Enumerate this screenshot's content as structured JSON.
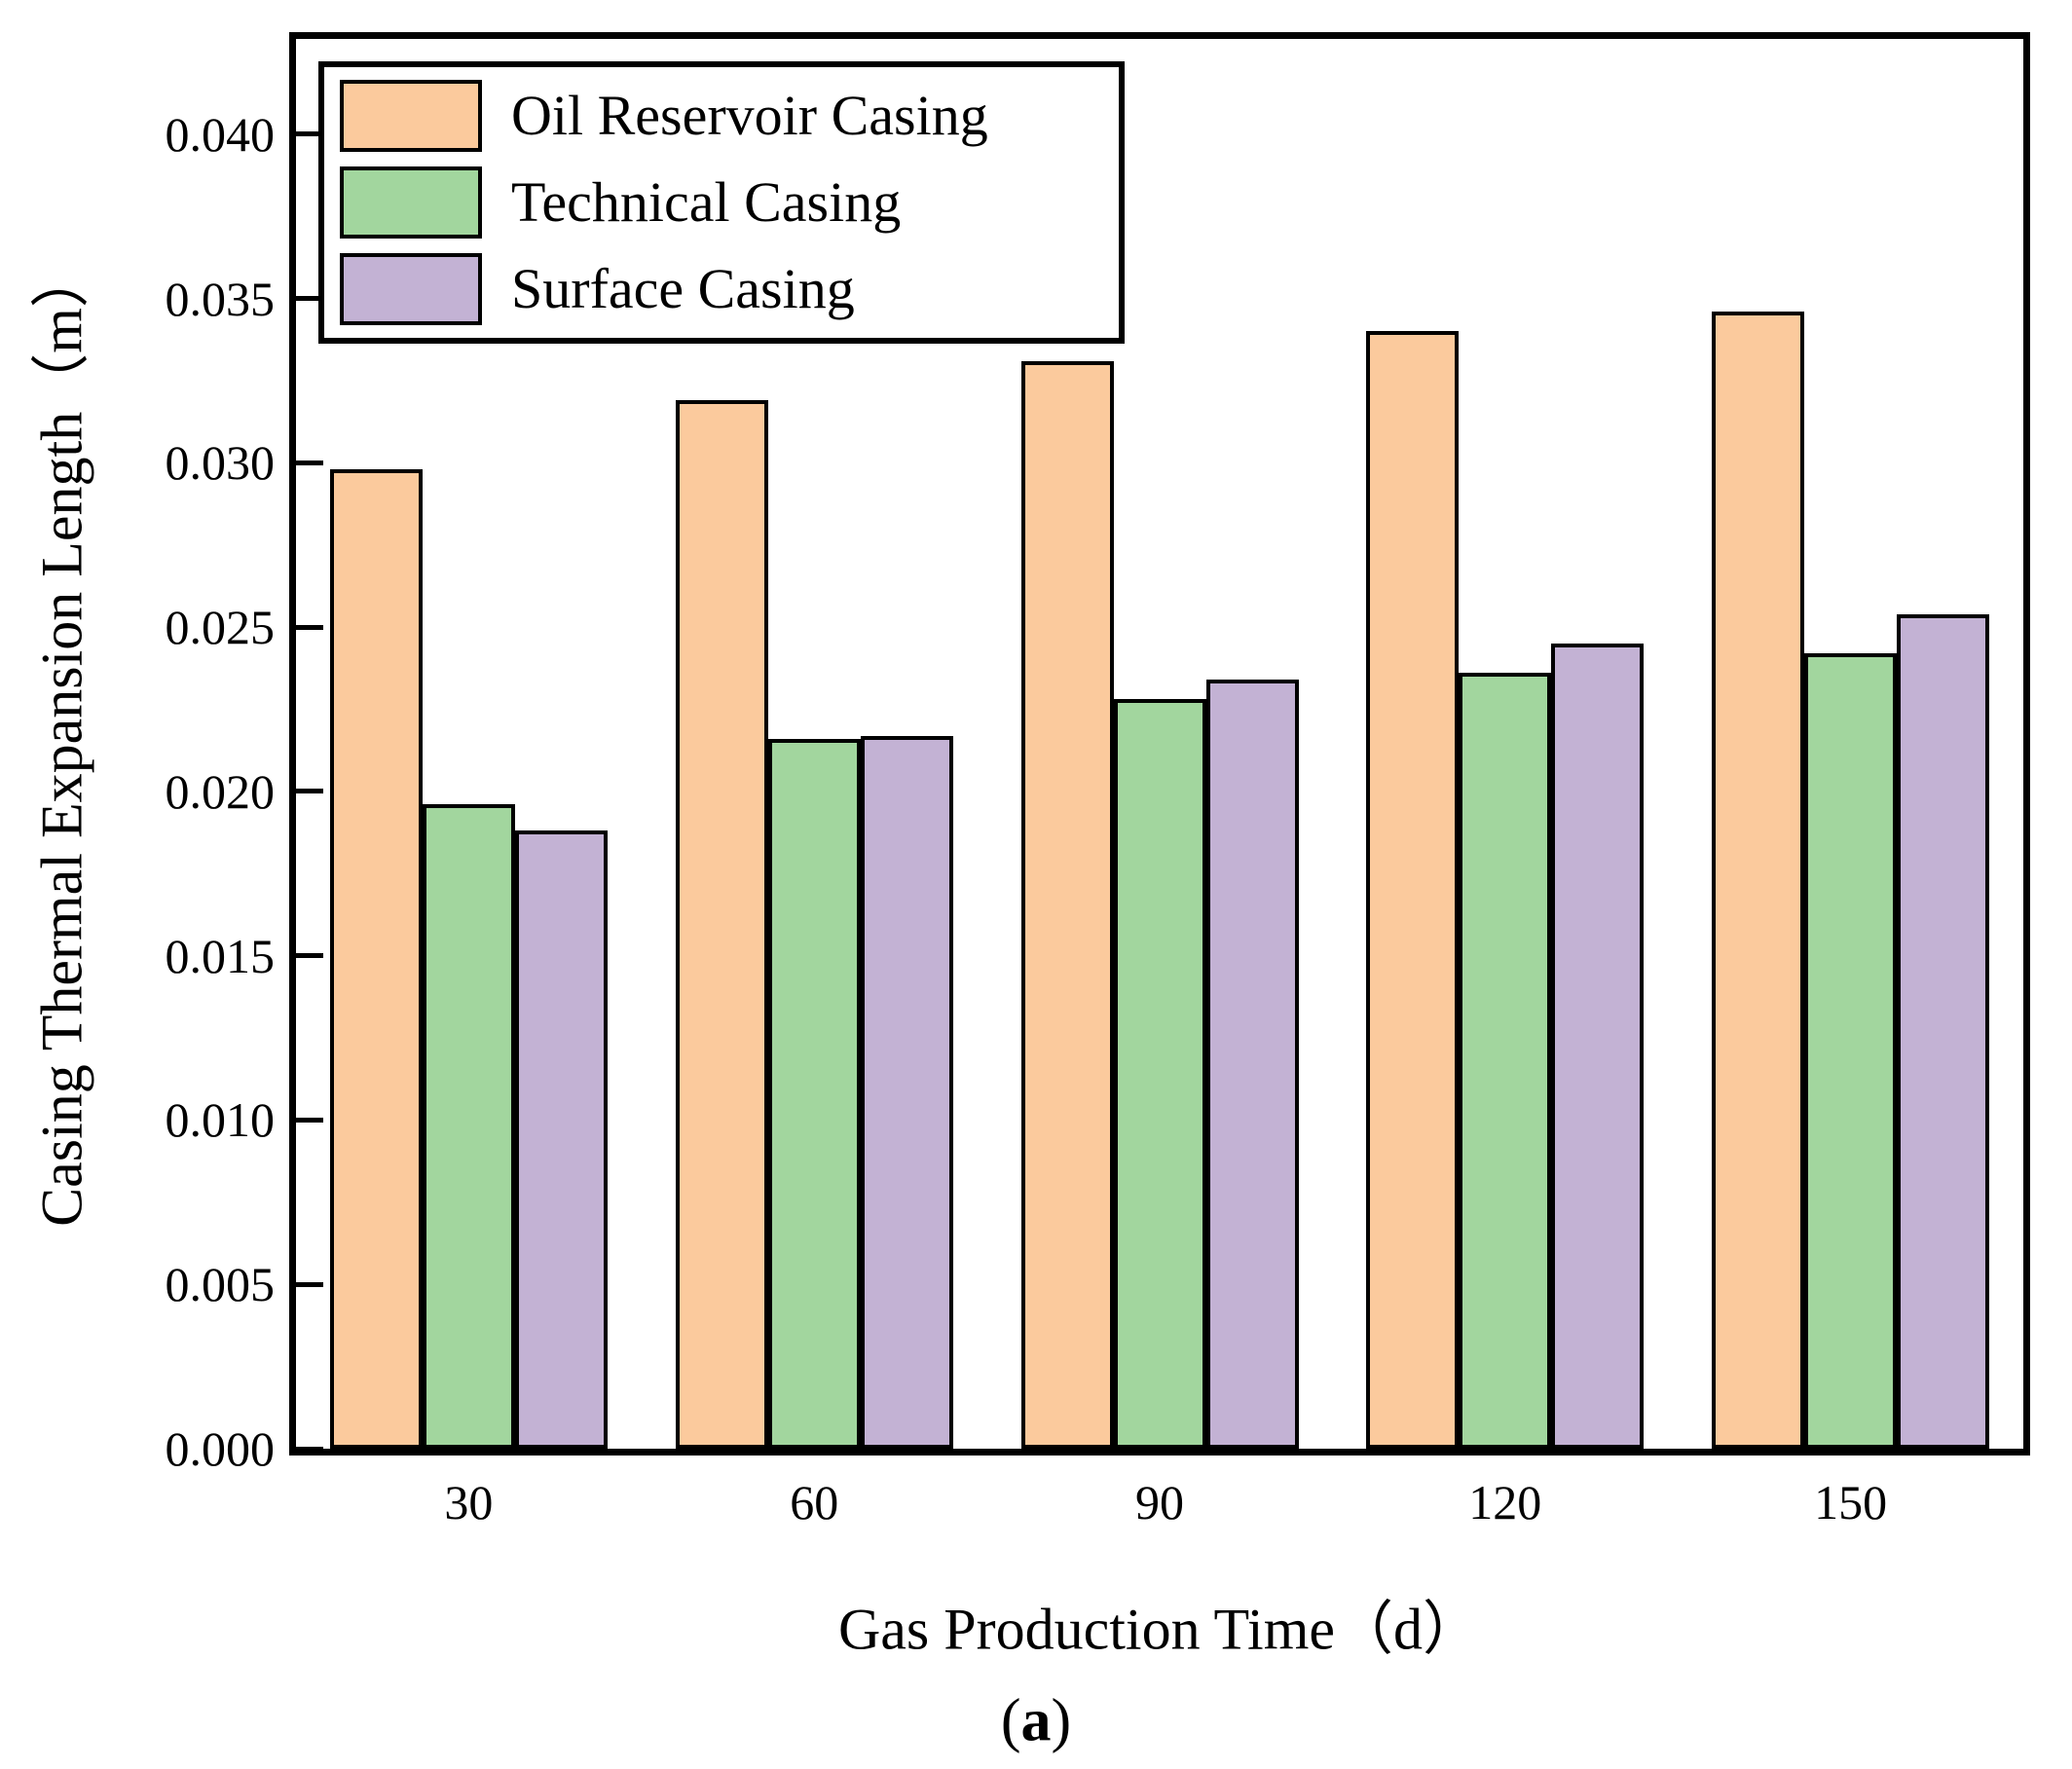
{
  "figure": {
    "caption_open": "(",
    "caption_letter": "a",
    "caption_close": ")"
  },
  "chart_data": {
    "type": "bar",
    "title": "",
    "xlabel": "Gas Production Time（d）",
    "ylabel": "Casing Thermal Expansion Length（m）",
    "categories": [
      "30",
      "60",
      "90",
      "120",
      "150"
    ],
    "series": [
      {
        "name": "Oil Reservoir Casing",
        "color": "#FBCA9D",
        "values": [
          0.0298,
          0.0319,
          0.0331,
          0.034,
          0.0346
        ]
      },
      {
        "name": "Technical Casing",
        "color": "#A2D69E",
        "values": [
          0.0196,
          0.0216,
          0.0228,
          0.0236,
          0.0242
        ]
      },
      {
        "name": "Surface Casing",
        "color": "#C3B2D4",
        "values": [
          0.0188,
          0.0217,
          0.0234,
          0.0245,
          0.0254
        ]
      }
    ],
    "ylim": [
      0,
      0.0429
    ],
    "ytick_step": 0.005,
    "ytick_labels": [
      "0.000",
      "0.005",
      "0.010",
      "0.015",
      "0.020",
      "0.025",
      "0.030",
      "0.035",
      "0.040"
    ],
    "bar_border_color": "#000000",
    "legend_position": "top-left",
    "grid": false
  }
}
